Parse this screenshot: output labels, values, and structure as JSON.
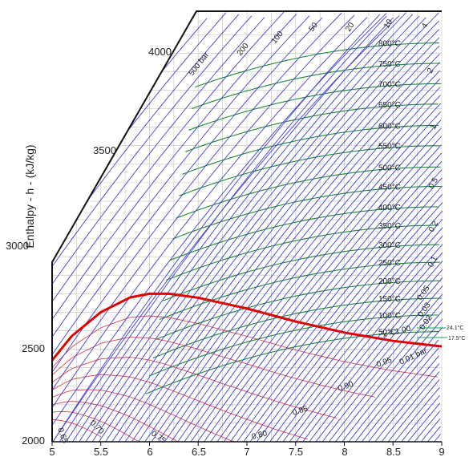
{
  "chart_data": {
    "type": "line",
    "title": "",
    "xlabel": "",
    "ylabel": "Enthalpy - h - (kJ/kg)",
    "x_ticks": [
      "5",
      "5.5",
      "6",
      "6.5",
      "7",
      "7.5",
      "8",
      "8.5",
      "9"
    ],
    "y_ticks": [
      "2000",
      "2500",
      "3000",
      "3500",
      "4000"
    ],
    "xlim": [
      5,
      9
    ],
    "ylim": [
      2000,
      4250
    ],
    "grid": true,
    "colors": {
      "isobar": "#3f3fd6",
      "isotherm": "#1d8a2a",
      "quality": "#e0424a",
      "saturation": "#e00000",
      "annotation": "#13a35a",
      "grid": "#c4c4c4"
    },
    "saturation_curve": {
      "x": [
        5.0,
        5.2,
        5.5,
        5.8,
        6.0,
        6.2,
        6.5,
        7.0,
        7.5,
        8.0,
        8.5,
        9.0
      ],
      "y": [
        2440,
        2570,
        2700,
        2780,
        2800,
        2800,
        2778,
        2720,
        2650,
        2590,
        2545,
        2515
      ]
    },
    "isotherms": [
      {
        "label": "800°C",
        "y": 4155
      },
      {
        "label": "750°C",
        "y": 4045
      },
      {
        "label": "700°C",
        "y": 3935
      },
      {
        "label": "650°C",
        "y": 3825
      },
      {
        "label": "600°C",
        "y": 3710
      },
      {
        "label": "550°C",
        "y": 3600
      },
      {
        "label": "500°C",
        "y": 3485
      },
      {
        "label": "450°C",
        "y": 3380
      },
      {
        "label": "400°C",
        "y": 3270
      },
      {
        "label": "350°C",
        "y": 3170
      },
      {
        "label": "300°C",
        "y": 3065
      },
      {
        "label": "250°C",
        "y": 2970
      },
      {
        "label": "200°C",
        "y": 2870
      },
      {
        "label": "150°C",
        "y": 2775
      },
      {
        "label": "100°C",
        "y": 2685
      },
      {
        "label": "50°C",
        "y": 2595
      }
    ],
    "isobar_labels": [
      "500 bar",
      "200",
      "100",
      "50",
      "20",
      "10",
      "4",
      "2",
      "1",
      "0.5",
      "0.2",
      "0.1",
      "0.05",
      "0.03",
      "0.02",
      "0.01 bar"
    ],
    "quality_labels": [
      "x = 1.00",
      "0.95",
      "0.90",
      "0.85",
      "0.80",
      "0.75",
      "0.70",
      "0.65"
    ],
    "side_annotations": [
      "24.1°C",
      "17.5°C"
    ]
  }
}
